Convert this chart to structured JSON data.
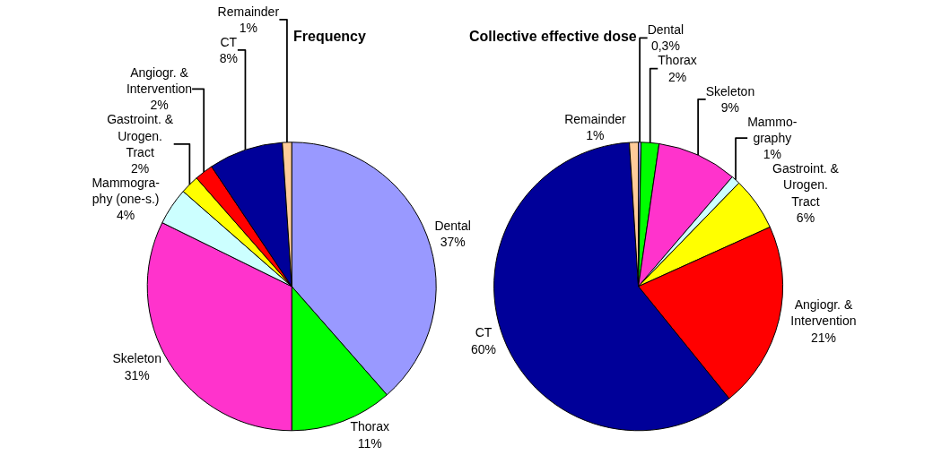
{
  "chart_data": [
    {
      "type": "pie",
      "title": "Frequency",
      "categories": [
        "Dental",
        "Thorax",
        "Skeleton",
        "Mammogra-\nphy (one-s.)",
        "Gastroint. &\nUrogen.\nTract",
        "Angiogr. &\nIntervention",
        "CT",
        "Remainder"
      ],
      "values": [
        37,
        11,
        31,
        4,
        2,
        2,
        8,
        1
      ],
      "value_labels": [
        "37%",
        "11%",
        "31%",
        "4%",
        "2%",
        "2%",
        "8%",
        "1%"
      ],
      "colors": [
        "#9999ff",
        "#00ff00",
        "#ff33cc",
        "#ccffff",
        "#ffff00",
        "#ff0000",
        "#000099",
        "#ffcc99"
      ]
    },
    {
      "type": "pie",
      "title": "Collective effective dose",
      "categories": [
        "Dental",
        "Thorax",
        "Skeleton",
        "Mammo-\ngraphy",
        "Gastroint. &\nUrogen.\nTract",
        "Angiogr. &\nIntervention",
        "CT",
        "Remainder"
      ],
      "values": [
        0.3,
        2,
        9,
        1,
        6,
        21,
        60,
        1
      ],
      "value_labels": [
        "0,3%",
        "2%",
        "9%",
        "1%",
        "6%",
        "21%",
        "60%",
        "1%"
      ],
      "colors": [
        "#9999ff",
        "#00ff00",
        "#ff33cc",
        "#ccffff",
        "#ffff00",
        "#ff0000",
        "#000099",
        "#ffcc99"
      ]
    }
  ]
}
